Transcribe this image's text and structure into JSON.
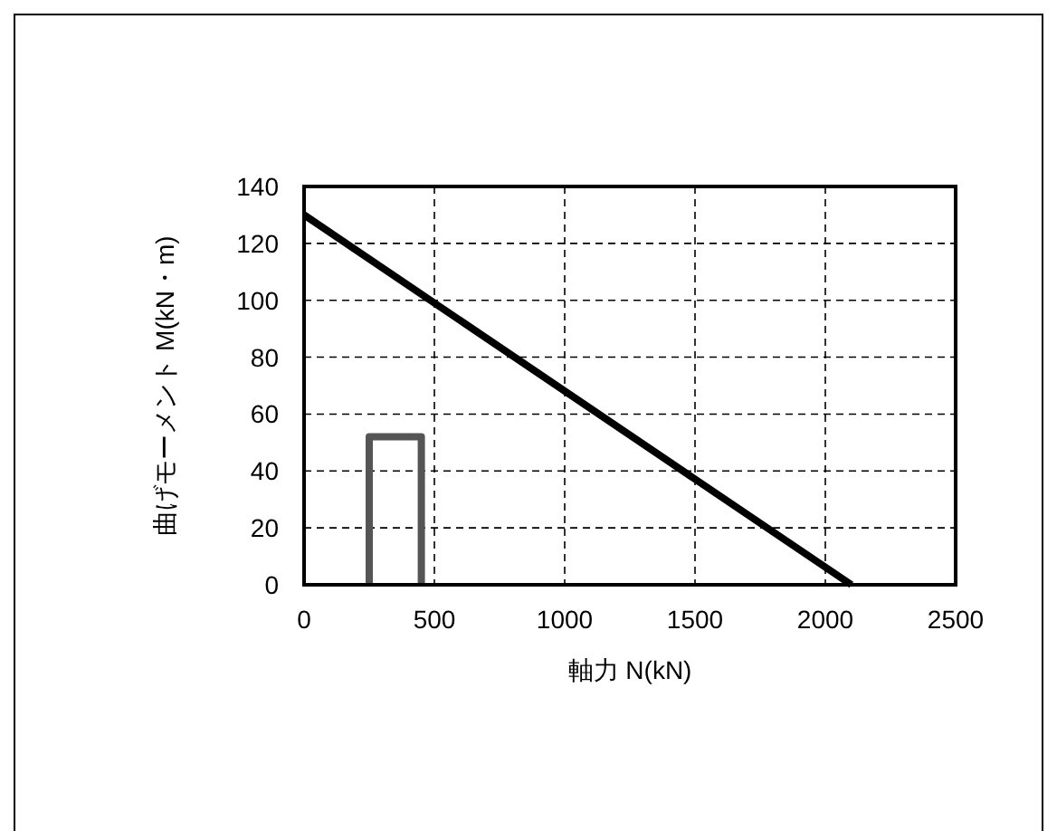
{
  "chart_data": {
    "type": "line",
    "xlabel": "軸力 N(kN)",
    "ylabel": "曲げモーメント M(kN・m)",
    "series": [
      {
        "x": [
          0,
          2100
        ],
        "values": [
          130,
          0
        ],
        "color": "#000000"
      },
      {
        "x": [
          250,
          250,
          450,
          450
        ],
        "values": [
          0,
          52,
          52,
          0
        ],
        "color": "#555555"
      }
    ],
    "xlim": [
      0,
      2500
    ],
    "xticks": [
      0,
      500,
      1000,
      1500,
      2000,
      2500
    ],
    "ylim": [
      0,
      140
    ],
    "yticks": [
      0,
      20,
      40,
      60,
      80,
      100,
      120,
      140
    ],
    "grid": true,
    "marker": "none",
    "line_style": "solid"
  }
}
